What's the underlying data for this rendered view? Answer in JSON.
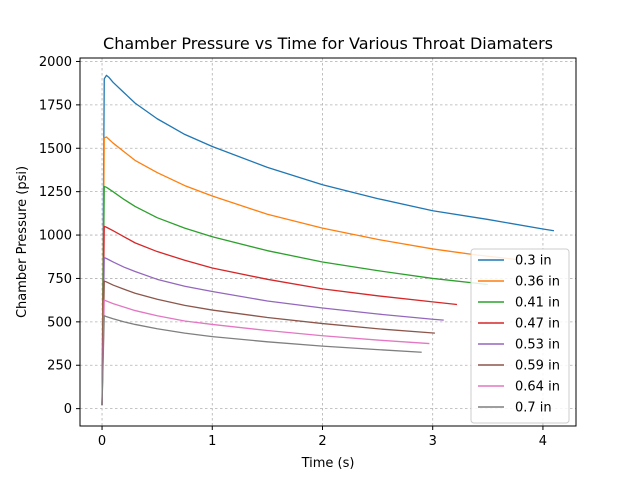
{
  "chart_data": {
    "type": "line",
    "title": "Chamber Pressure vs Time for Various Throat Diamaters",
    "xlabel": "Time (s)",
    "ylabel": "Chamber Pressure (psi)",
    "xlim": [
      -0.2,
      4.3
    ],
    "ylim": [
      -100,
      2020
    ],
    "xticks": [
      0,
      1,
      2,
      3,
      4
    ],
    "yticks": [
      0,
      250,
      500,
      750,
      1000,
      1250,
      1500,
      1750,
      2000
    ],
    "xtick_labels": [
      "0",
      "1",
      "2",
      "3",
      "4"
    ],
    "ytick_labels": [
      "0",
      "250",
      "500",
      "750",
      "1000",
      "1250",
      "1500",
      "1750",
      "2000"
    ],
    "grid": true,
    "grid_style": "dashed",
    "legend_position": "lower-right",
    "series": [
      {
        "name": "0.3 in",
        "color": "#1f77b4",
        "x": [
          0,
          0.02,
          0.04,
          0.06,
          0.1,
          0.2,
          0.3,
          0.5,
          0.75,
          1.0,
          1.5,
          2.0,
          2.5,
          3.0,
          3.5,
          4.0,
          4.1
        ],
        "y": [
          20,
          1900,
          1920,
          1910,
          1880,
          1820,
          1760,
          1670,
          1580,
          1510,
          1390,
          1290,
          1210,
          1140,
          1090,
          1035,
          1025
        ]
      },
      {
        "name": "0.36 in",
        "color": "#ff7f0e",
        "x": [
          0,
          0.02,
          0.04,
          0.1,
          0.2,
          0.3,
          0.5,
          0.75,
          1.0,
          1.5,
          2.0,
          2.5,
          3.0,
          3.4,
          3.75
        ],
        "y": [
          20,
          1560,
          1565,
          1530,
          1480,
          1430,
          1360,
          1285,
          1225,
          1120,
          1040,
          975,
          920,
          885,
          860
        ]
      },
      {
        "name": "0.41 in",
        "color": "#2ca02c",
        "x": [
          0,
          0.02,
          0.04,
          0.1,
          0.2,
          0.3,
          0.5,
          0.75,
          1.0,
          1.5,
          2.0,
          2.5,
          3.0,
          3.5
        ],
        "y": [
          20,
          1280,
          1275,
          1250,
          1205,
          1165,
          1100,
          1040,
          990,
          910,
          845,
          795,
          750,
          715
        ]
      },
      {
        "name": "0.47 in",
        "color": "#d62728",
        "x": [
          0,
          0.02,
          0.04,
          0.1,
          0.2,
          0.3,
          0.5,
          0.75,
          1.0,
          1.5,
          2.0,
          2.5,
          3.0,
          3.22
        ],
        "y": [
          20,
          1050,
          1045,
          1025,
          990,
          955,
          905,
          855,
          810,
          745,
          690,
          650,
          615,
          600
        ]
      },
      {
        "name": "0.53 in",
        "color": "#9467bd",
        "x": [
          0,
          0.02,
          0.04,
          0.1,
          0.2,
          0.3,
          0.5,
          0.75,
          1.0,
          1.5,
          2.0,
          2.5,
          3.0,
          3.1
        ],
        "y": [
          20,
          870,
          865,
          845,
          815,
          790,
          745,
          705,
          675,
          620,
          580,
          545,
          515,
          510
        ]
      },
      {
        "name": "0.59 in",
        "color": "#8c564b",
        "x": [
          0,
          0.02,
          0.04,
          0.1,
          0.2,
          0.3,
          0.5,
          0.75,
          1.0,
          1.5,
          2.0,
          2.5,
          3.02
        ],
        "y": [
          20,
          735,
          730,
          712,
          688,
          665,
          630,
          595,
          568,
          525,
          490,
          460,
          435
        ]
      },
      {
        "name": "0.64 in",
        "color": "#e377c2",
        "x": [
          0,
          0.02,
          0.04,
          0.1,
          0.2,
          0.3,
          0.5,
          0.75,
          1.0,
          1.5,
          2.0,
          2.5,
          2.97
        ],
        "y": [
          20,
          625,
          620,
          605,
          585,
          565,
          535,
          505,
          485,
          450,
          420,
          395,
          375
        ]
      },
      {
        "name": "0.7 in",
        "color": "#7f7f7f",
        "x": [
          0,
          0.02,
          0.04,
          0.1,
          0.2,
          0.3,
          0.5,
          0.75,
          1.0,
          1.5,
          2.0,
          2.5,
          2.9
        ],
        "y": [
          20,
          535,
          530,
          518,
          500,
          485,
          460,
          435,
          415,
          385,
          360,
          340,
          325
        ]
      }
    ]
  }
}
